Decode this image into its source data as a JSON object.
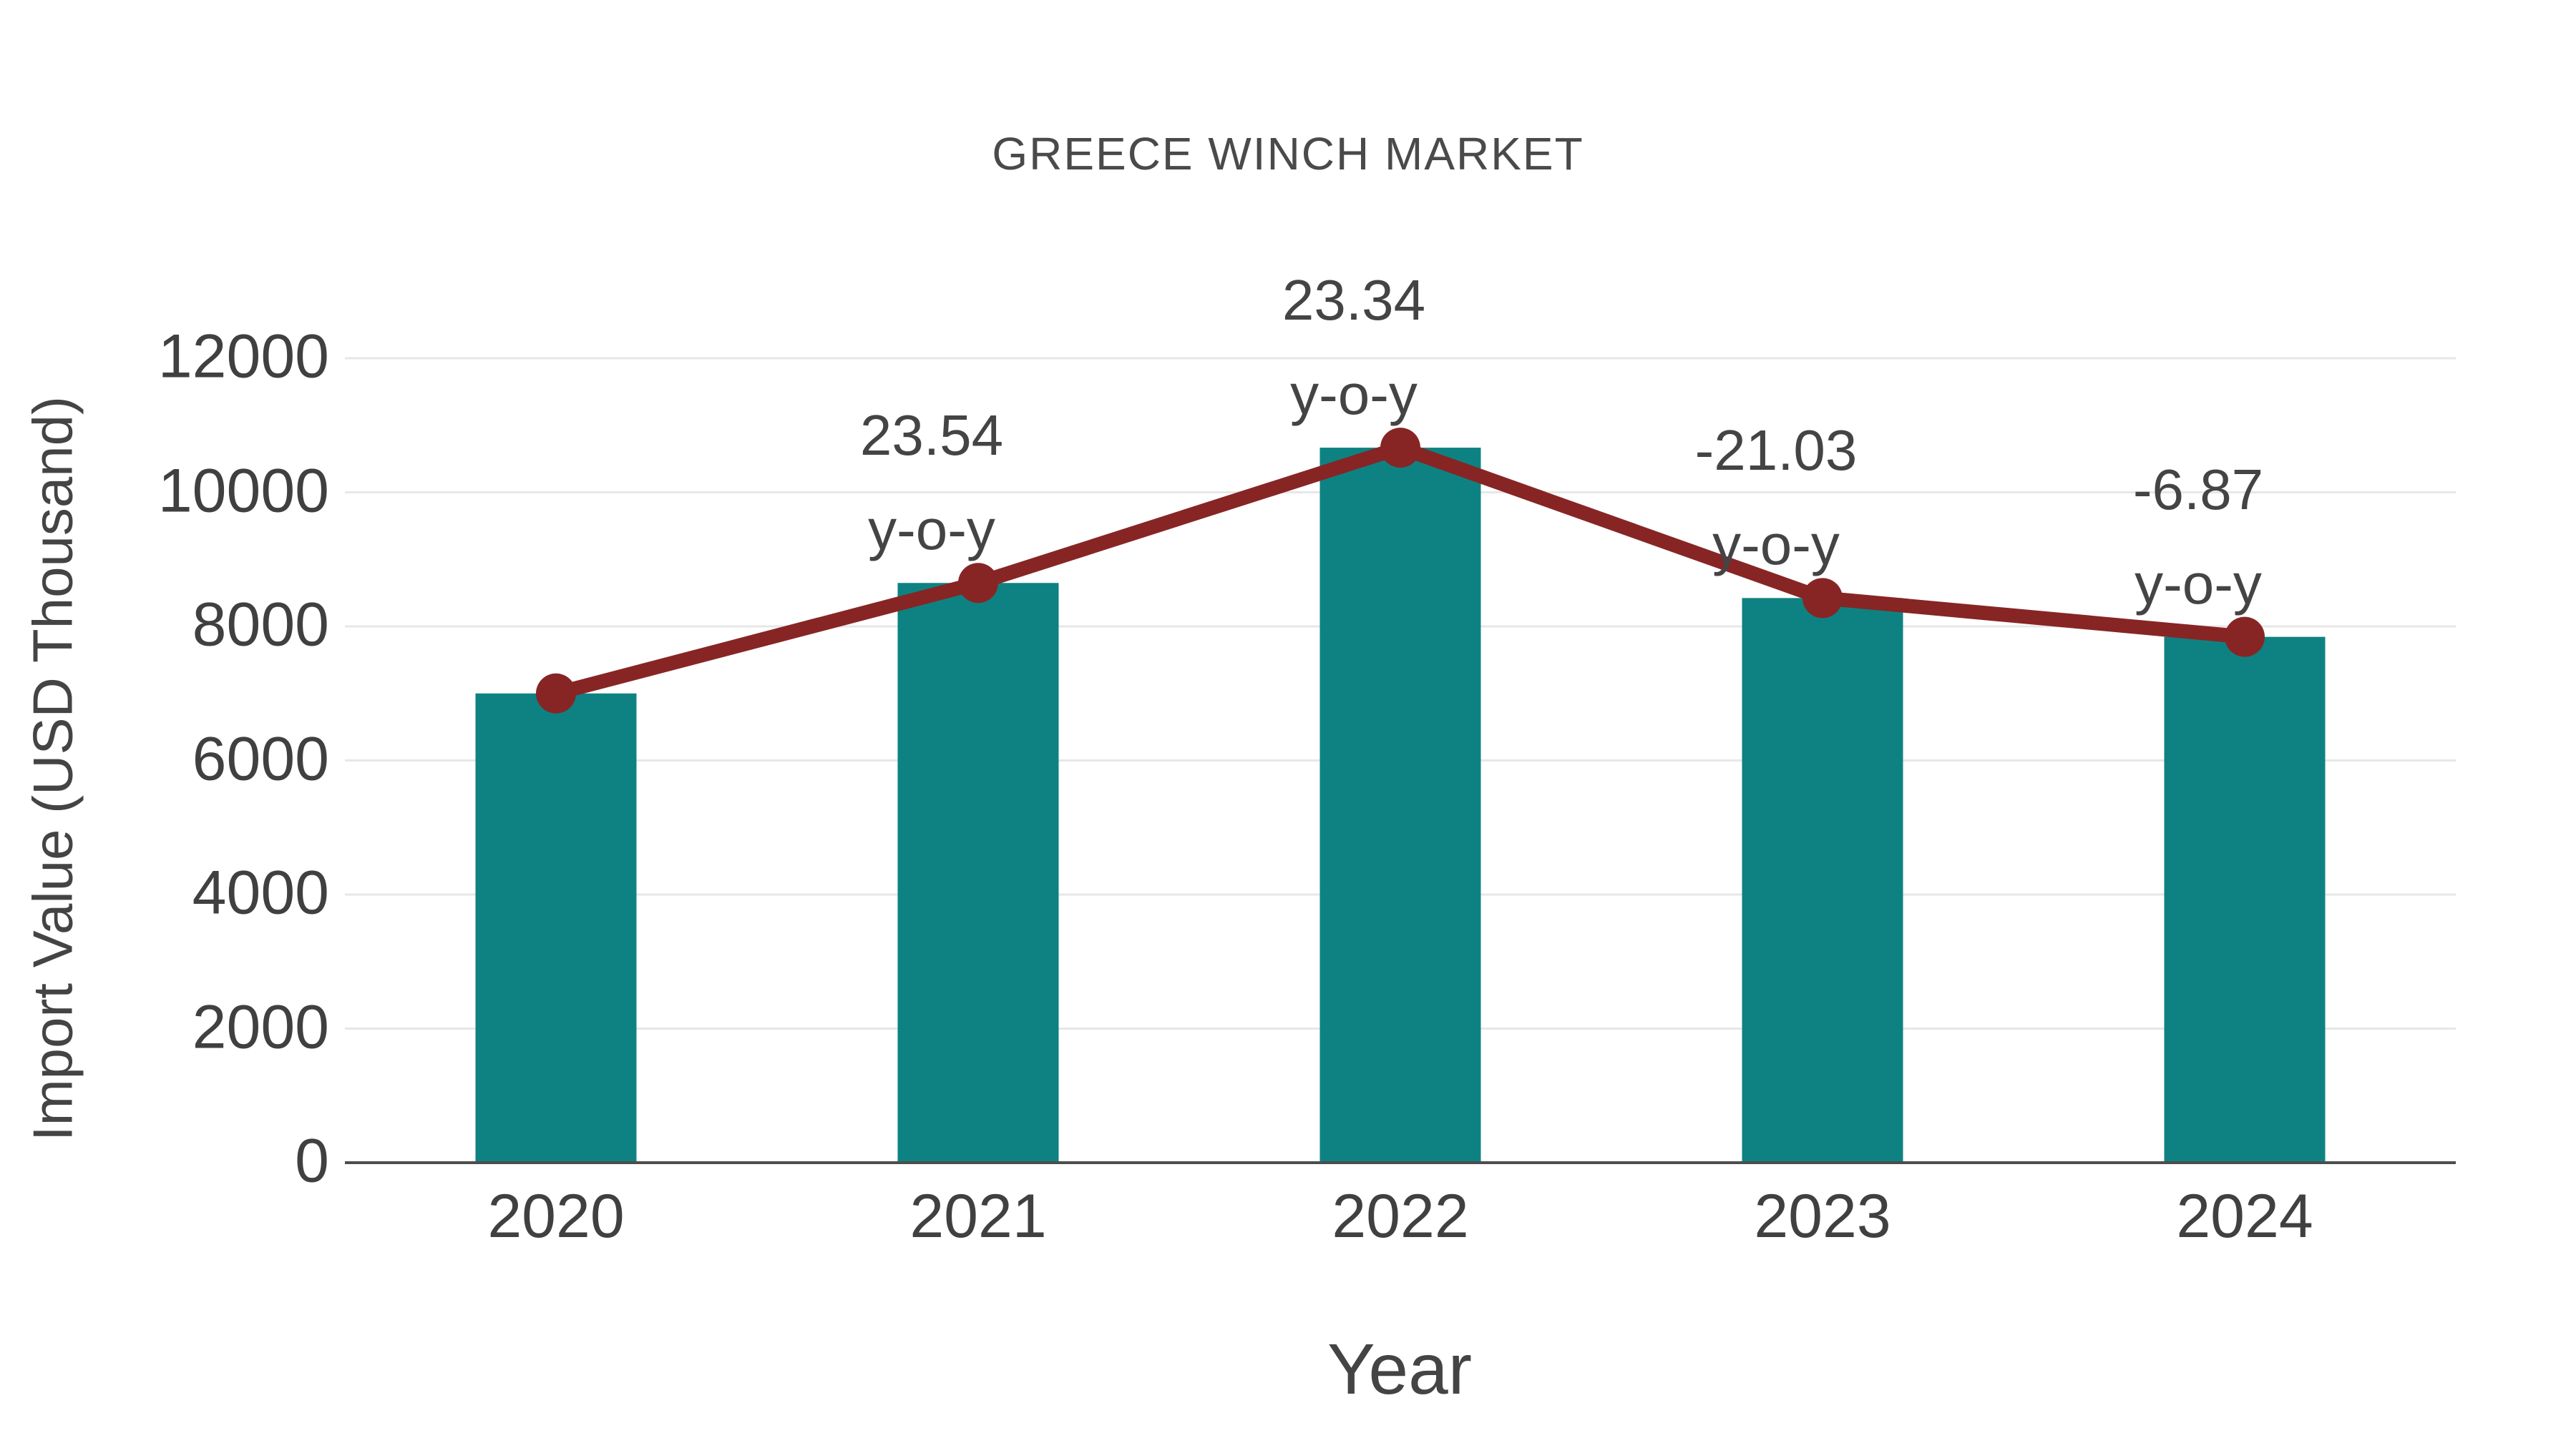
{
  "chart_data": {
    "type": "bar",
    "title": "GREECE WINCH MARKET",
    "xlabel": "Year",
    "ylabel": "Import Value (USD Thousand)",
    "categories": [
      "2020",
      "2021",
      "2022",
      "2023",
      "2024"
    ],
    "series": [
      {
        "name": "Import Value bars",
        "type": "bar",
        "values": [
          7000,
          8648,
          10666,
          8423,
          7844
        ]
      },
      {
        "name": "Import Value trend line with y-o-y change labels",
        "type": "line",
        "values": [
          7000,
          8648,
          10666,
          8423,
          7844
        ],
        "point_labels": [
          "",
          "23.54",
          "23.34",
          "-21.03",
          "-6.87"
        ],
        "point_label_suffix": "y-o-y"
      }
    ],
    "ylim": [
      0,
      12000
    ],
    "yticks": [
      0,
      2000,
      4000,
      6000,
      8000,
      10000,
      12000
    ],
    "grid": "horizontal-light",
    "legend_position": "none",
    "colors": {
      "bar": "#0E8282",
      "line": "#872525",
      "marker": "#872525",
      "text": "#444444",
      "tick_text": "#404040",
      "title_text": "#4A4A4A",
      "gridline": "#E7E7E7",
      "axis_line": "#4D4D4D",
      "background": "#FFFFFF"
    }
  }
}
